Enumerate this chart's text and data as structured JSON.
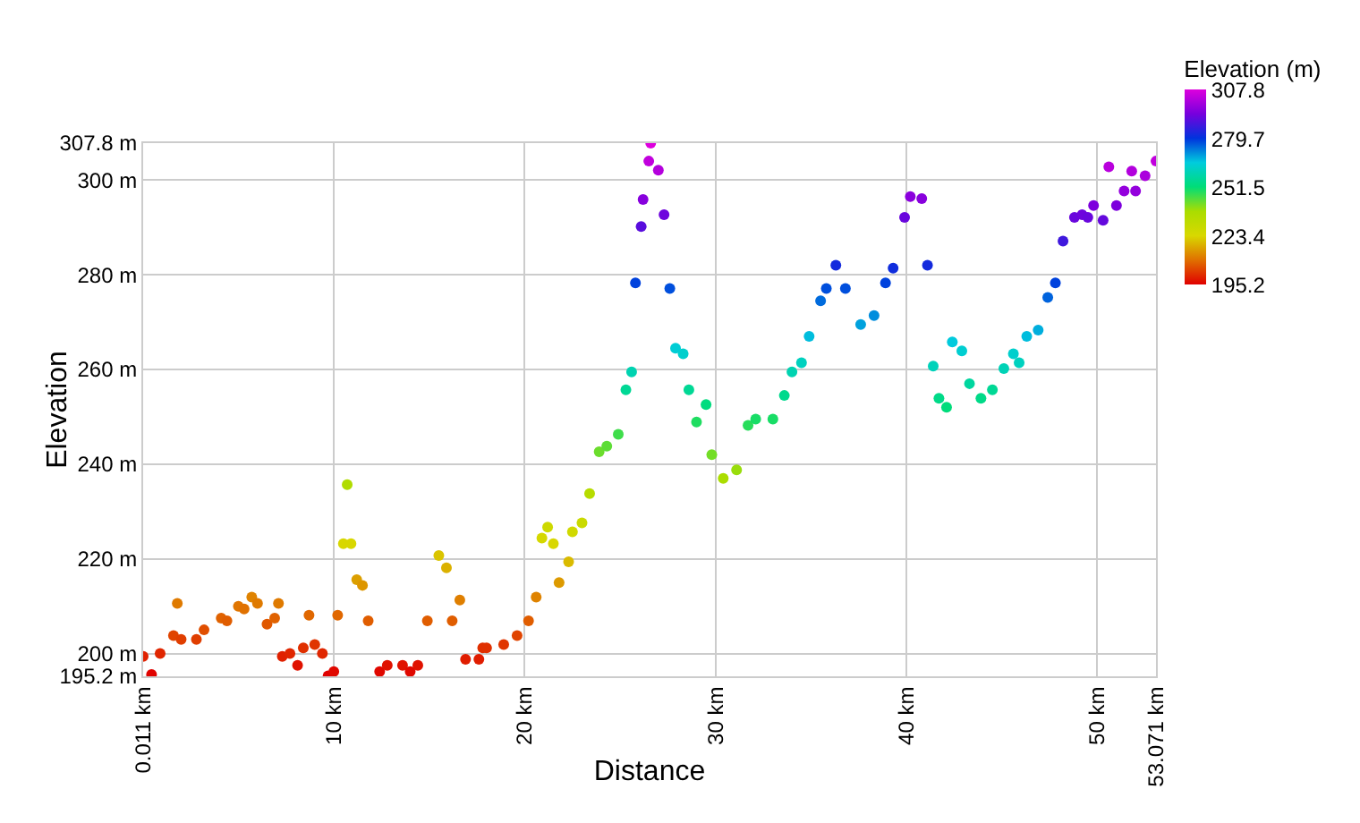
{
  "chart_data": {
    "type": "scatter",
    "xlabel": "Distance",
    "ylabel": "Elevation",
    "clabel": "Elevation (m)",
    "x": [
      0.011,
      0.45,
      0.9,
      1.6,
      1.8,
      2.0,
      2.8,
      3.2,
      4.1,
      4.4,
      5.0,
      5.3,
      5.7,
      6.0,
      6.5,
      6.9,
      7.1,
      7.3,
      7.7,
      8.1,
      8.4,
      8.7,
      9.0,
      9.4,
      9.7,
      10.0,
      10.2,
      10.5,
      10.7,
      10.9,
      11.2,
      11.5,
      11.8,
      12.4,
      12.8,
      13.6,
      14.0,
      14.4,
      14.9,
      15.5,
      15.9,
      16.2,
      16.6,
      16.9,
      17.6,
      17.8,
      18.0,
      18.9,
      19.6,
      20.2,
      20.6,
      20.9,
      21.2,
      21.5,
      21.8,
      22.3,
      22.5,
      23.0,
      23.4,
      23.9,
      24.3,
      24.9,
      25.3,
      25.6,
      25.8,
      26.1,
      26.2,
      26.5,
      26.6,
      27.0,
      27.3,
      27.6,
      27.9,
      28.3,
      28.6,
      29.0,
      29.5,
      29.8,
      30.4,
      31.1,
      31.7,
      32.1,
      33.0,
      33.6,
      34.0,
      34.5,
      34.9,
      35.5,
      35.8,
      36.3,
      36.8,
      37.6,
      38.3,
      38.9,
      39.3,
      39.9,
      40.2,
      40.8,
      41.1,
      41.4,
      41.7,
      42.1,
      42.4,
      42.9,
      43.3,
      43.9,
      44.5,
      45.1,
      45.6,
      45.9,
      46.3,
      46.9,
      47.4,
      47.8,
      48.2,
      48.8,
      49.2,
      49.5,
      49.8,
      50.3,
      50.6,
      51.0,
      51.4,
      51.8,
      52.0,
      52.5,
      53.07
    ],
    "values": [
      199.4,
      195.6,
      200,
      203.8,
      210.6,
      203,
      203,
      205,
      207.5,
      206.9,
      210,
      209.4,
      211.9,
      210.6,
      206.2,
      207.5,
      210.6,
      199.4,
      200,
      197.5,
      201.2,
      208.1,
      201.9,
      200,
      195.3,
      196.2,
      208.1,
      223.2,
      235.7,
      223.2,
      215.6,
      214.4,
      206.9,
      196.2,
      197.5,
      197.5,
      196.2,
      197.5,
      206.9,
      220.7,
      218.1,
      206.9,
      211.3,
      198.8,
      198.8,
      201.2,
      201.2,
      201.9,
      203.8,
      206.9,
      211.9,
      224.4,
      226.7,
      223.2,
      215,
      219.4,
      225.7,
      227.6,
      233.8,
      242.6,
      243.8,
      246.3,
      255.7,
      259.5,
      278.3,
      290.2,
      295.9,
      304,
      307.8,
      302.1,
      292.7,
      277.1,
      264.5,
      263.3,
      255.7,
      248.9,
      252.6,
      242,
      237,
      238.8,
      248.2,
      249.5,
      249.5,
      254.5,
      259.5,
      261.4,
      267,
      274.5,
      277.1,
      282,
      277.1,
      269.5,
      271.4,
      278.3,
      281.4,
      292.1,
      296.5,
      296.1,
      282,
      260.7,
      253.9,
      252,
      265.8,
      263.9,
      257,
      253.9,
      255.7,
      260.2,
      263.3,
      261.4,
      267,
      268.3,
      275.2,
      278.3,
      287.1,
      292.1,
      292.7,
      292.1,
      294.6,
      291.5,
      302.8,
      294.6,
      297.7,
      301.9,
      297.7,
      300.9,
      304
    ],
    "cvalues": [
      199.4,
      195.6,
      200,
      203.8,
      210.6,
      203,
      203,
      205,
      207.5,
      206.9,
      210,
      209.4,
      211.9,
      210.6,
      206.2,
      207.5,
      210.6,
      199.4,
      200,
      197.5,
      201.2,
      208.1,
      201.9,
      200,
      195.3,
      196.2,
      208.1,
      223.2,
      235.7,
      223.2,
      215.6,
      214.4,
      206.9,
      196.2,
      197.5,
      197.5,
      196.2,
      197.5,
      206.9,
      220.7,
      218.1,
      206.9,
      211.3,
      198.8,
      198.8,
      201.2,
      201.2,
      201.9,
      203.8,
      206.9,
      211.9,
      224.4,
      226.7,
      223.2,
      215,
      219.4,
      225.7,
      227.6,
      233.8,
      242.6,
      243.8,
      246.3,
      255.7,
      259.5,
      278.3,
      290.2,
      295.9,
      304,
      307.8,
      302.1,
      292.7,
      277.1,
      264.5,
      263.3,
      255.7,
      248.9,
      252.6,
      242,
      237,
      238.8,
      248.2,
      249.5,
      249.5,
      254.5,
      259.5,
      261.4,
      267,
      274.5,
      277.1,
      282,
      277.1,
      269.5,
      271.4,
      278.3,
      281.4,
      292.1,
      296.5,
      296.1,
      282,
      260.7,
      253.9,
      252,
      265.8,
      263.9,
      257,
      253.9,
      255.7,
      260.2,
      263.3,
      261.4,
      267,
      268.3,
      275.2,
      278.3,
      287.1,
      292.1,
      292.7,
      292.1,
      294.6,
      291.5,
      302.8,
      294.6,
      297.7,
      301.9,
      297.7,
      300.9,
      304
    ],
    "clim": [
      195.2,
      307.8
    ],
    "cticks": [
      195.2,
      223.4,
      251.5,
      279.7,
      307.8
    ],
    "xlim": [
      0.011,
      53.071
    ],
    "xticks": [
      {
        "value": 0.011,
        "label": "0.011 km"
      },
      {
        "value": 10,
        "label": "10 km"
      },
      {
        "value": 20,
        "label": "20 km"
      },
      {
        "value": 30,
        "label": "30 km"
      },
      {
        "value": 40,
        "label": "40 km"
      },
      {
        "value": 50,
        "label": "50 km"
      },
      {
        "value": 53.071,
        "label": "53.071 km"
      }
    ],
    "ylim": [
      195.2,
      307.8
    ],
    "yticks": [
      {
        "value": 195.2,
        "label": "195.2 m"
      },
      {
        "value": 200,
        "label": "200 m"
      },
      {
        "value": 220,
        "label": "220 m"
      },
      {
        "value": 240,
        "label": "240 m"
      },
      {
        "value": 260,
        "label": "260 m"
      },
      {
        "value": 280,
        "label": "280 m"
      },
      {
        "value": 300,
        "label": "300 m"
      },
      {
        "value": 307.8,
        "label": "307.8 m"
      }
    ],
    "grid": true,
    "marker": "circle"
  }
}
